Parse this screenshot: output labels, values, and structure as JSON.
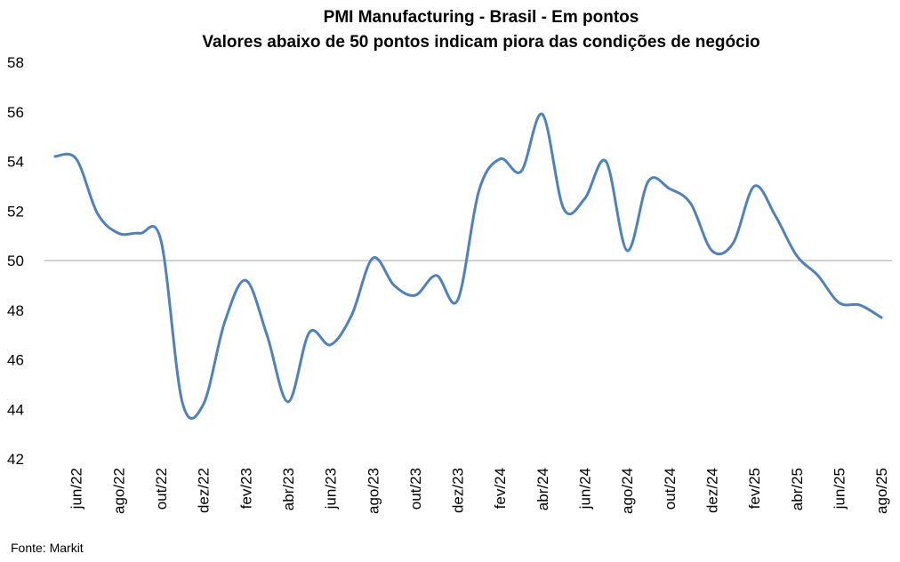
{
  "chart_data": {
    "type": "line",
    "title": "PMI Manufacturing - Brasil - Em pontos",
    "subtitle": "Valores abaixo de 50 pontos indicam piora das condições de negócio",
    "source": "Fonte: Markit",
    "ylim": [
      42,
      58
    ],
    "yticks": [
      42,
      44,
      46,
      48,
      50,
      52,
      54,
      56,
      58
    ],
    "reference_line": 50,
    "grid": false,
    "legend": "none",
    "line_color": "#4F81BD",
    "reference_color": "#A6A6A6",
    "x": [
      "mai/22",
      "jun/22",
      "jul/22",
      "ago/22",
      "set/22",
      "out/22",
      "nov/22",
      "dez/22",
      "jan/23",
      "fev/23",
      "mar/23",
      "abr/23",
      "mai/23",
      "jun/23",
      "jul/23",
      "ago/23",
      "set/23",
      "out/23",
      "nov/23",
      "dez/23",
      "jan/24",
      "fev/24",
      "mar/24",
      "abr/24",
      "mai/24",
      "jun/24",
      "jul/24",
      "ago/24",
      "set/24",
      "out/24",
      "nov/24",
      "dez/24",
      "jan/25",
      "fev/25",
      "mar/25",
      "abr/25",
      "mai/25",
      "jun/25",
      "jul/25",
      "ago/25"
    ],
    "tick_labels": [
      "jun/22",
      "ago/22",
      "out/22",
      "dez/22",
      "fev/23",
      "abr/23",
      "jun/23",
      "ago/23",
      "out/23",
      "dez/23",
      "fev/24",
      "abr/24",
      "jun/24",
      "ago/24",
      "out/24",
      "dez/24",
      "fev/25",
      "abr/25",
      "jun/25",
      "ago/25"
    ],
    "series": [
      {
        "values": [
          54.2,
          54.1,
          51.9,
          51.1,
          51.1,
          50.8,
          44.3,
          44.2,
          47.5,
          49.2,
          47.0,
          44.3,
          47.1,
          46.6,
          47.8,
          50.1,
          49.0,
          48.6,
          49.4,
          48.4,
          52.8,
          54.1,
          53.6,
          55.9,
          52.1,
          52.5,
          54.0,
          50.4,
          53.2,
          52.9,
          52.3,
          50.4,
          50.7,
          53.0,
          51.8,
          50.2,
          49.4,
          48.3,
          48.2,
          47.7
        ]
      }
    ]
  }
}
